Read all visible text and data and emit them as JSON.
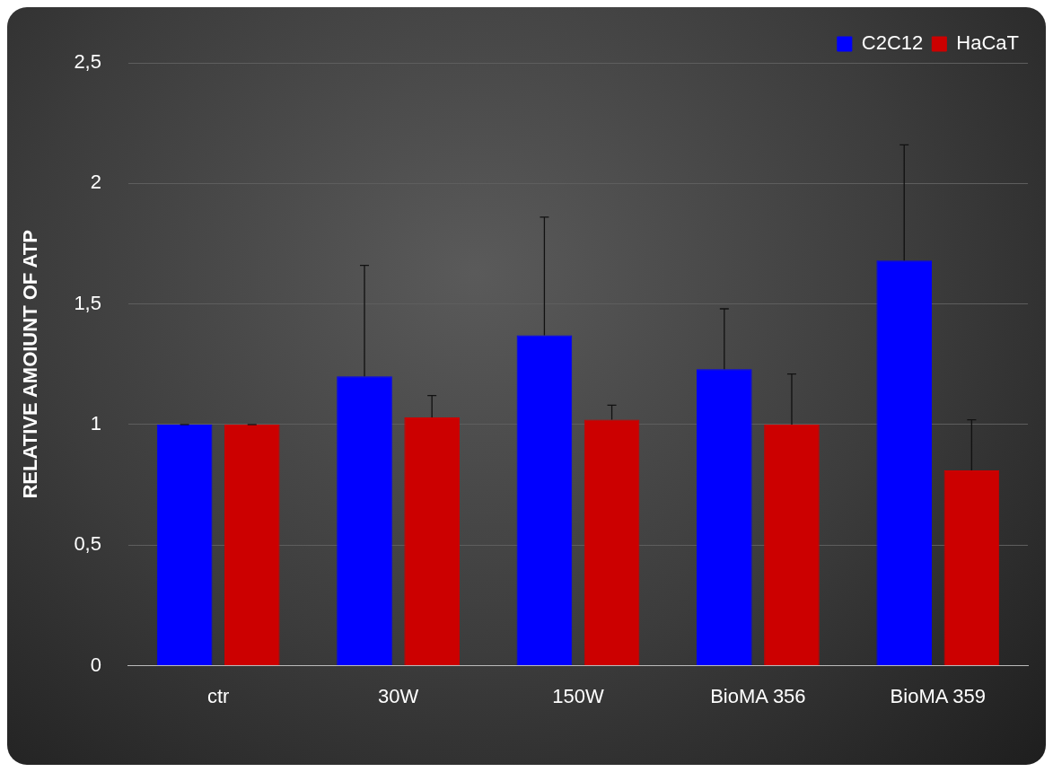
{
  "chart_data": {
    "type": "bar",
    "ylabel": "RELATIVE AMOIUNT OF ATP",
    "categories": [
      "ctr",
      "30W",
      "150W",
      "BioMA 356",
      "BioMA 359"
    ],
    "series": [
      {
        "name": "C2C12",
        "color": "#0000ff",
        "values": [
          1.0,
          1.2,
          1.37,
          1.23,
          1.68
        ],
        "errors": [
          0,
          0.46,
          0.49,
          0.25,
          0.48
        ]
      },
      {
        "name": "HaCaT",
        "color": "#cc0000",
        "values": [
          1.0,
          1.03,
          1.02,
          1.0,
          0.81
        ],
        "errors": [
          0,
          0.09,
          0.06,
          0.21,
          0.21
        ]
      }
    ],
    "ylim": [
      0,
      2.5
    ],
    "yticks": [
      0,
      {
        "value": 0.5,
        "label": "0,5"
      },
      1,
      {
        "value": 1.5,
        "label": "1,5"
      },
      2,
      {
        "value": 2.5,
        "label": "2,5"
      }
    ],
    "grid": "y",
    "legend": "top right"
  }
}
